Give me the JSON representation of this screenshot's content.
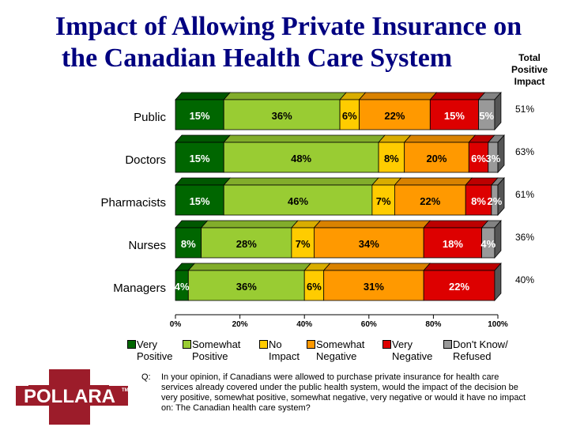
{
  "title": {
    "line1": "Impact of Allowing Private Insurance on",
    "line2": "the Canadian Health Care System"
  },
  "total_positive_label": {
    "line1": "Total",
    "line2": "Positive",
    "line3": "Impact"
  },
  "legend": [
    {
      "name": "Very Positive",
      "line1": "Very",
      "line2": "Positive",
      "color": "#006600"
    },
    {
      "name": "Somewhat Positive",
      "line1": "Somewhat",
      "line2": "Positive",
      "color": "#99CC33"
    },
    {
      "name": "No Impact",
      "line1": "No",
      "line2": "Impact",
      "color": "#FFCC00"
    },
    {
      "name": "Somewhat Negative",
      "line1": "Somewhat",
      "line2": "Negative",
      "color": "#FF9900"
    },
    {
      "name": "Very Negative",
      "line1": "Very",
      "line2": "Negative",
      "color": "#DD0000"
    },
    {
      "name": "Don't Know/Refused",
      "line1": "Don't Know/",
      "line2": "Refused",
      "color": "#999999"
    }
  ],
  "question": {
    "prefix": "Q:",
    "text": "In your opinion, if Canadians were allowed to purchase private insurance for health care services already covered under the public health system, would the impact of the decision be very positive, somewhat positive, somewhat negative, very negative or would it have no impact on: The Canadian health care system?"
  },
  "logo": {
    "text": "POLLARA",
    "tm": "TM"
  },
  "chart_data": {
    "type": "bar",
    "orientation": "horizontal",
    "stacked": true,
    "title": "Impact of Allowing Private Insurance on the Canadian Health Care System",
    "categories": [
      "Public",
      "Doctors",
      "Pharmacists",
      "Nurses",
      "Managers"
    ],
    "series": [
      {
        "name": "Very Positive",
        "values": [
          15,
          15,
          15,
          8,
          4
        ],
        "labels": [
          "15%",
          "15%",
          "15%",
          "8%",
          "4%"
        ]
      },
      {
        "name": "Somewhat Positive",
        "values": [
          36,
          48,
          46,
          28,
          36
        ],
        "labels": [
          "36%",
          "48%",
          "46%",
          "28%",
          "36%"
        ]
      },
      {
        "name": "No Impact",
        "values": [
          6,
          8,
          7,
          7,
          6
        ],
        "labels": [
          "6%",
          "8%",
          "7%",
          "7%",
          "6%"
        ]
      },
      {
        "name": "Somewhat Negative",
        "values": [
          22,
          20,
          22,
          34,
          31
        ],
        "labels": [
          "22%",
          "20%",
          "22%",
          "34%",
          "31%"
        ]
      },
      {
        "name": "Very Negative",
        "values": [
          15,
          6,
          8,
          18,
          22
        ],
        "labels": [
          "15%",
          "6%",
          "8%",
          "18%",
          "22%"
        ]
      },
      {
        "name": "Don't Know/Refused",
        "values": [
          5,
          3,
          2,
          4,
          0
        ],
        "labels": [
          "5%",
          "3%",
          "2%",
          "4%",
          ""
        ]
      }
    ],
    "total_positive": [
      "51%",
      "63%",
      "61%",
      "36%",
      "40%"
    ],
    "x_ticks": [
      "0%",
      "20%",
      "40%",
      "60%",
      "80%",
      "100%"
    ],
    "xlim": [
      0,
      100
    ]
  }
}
